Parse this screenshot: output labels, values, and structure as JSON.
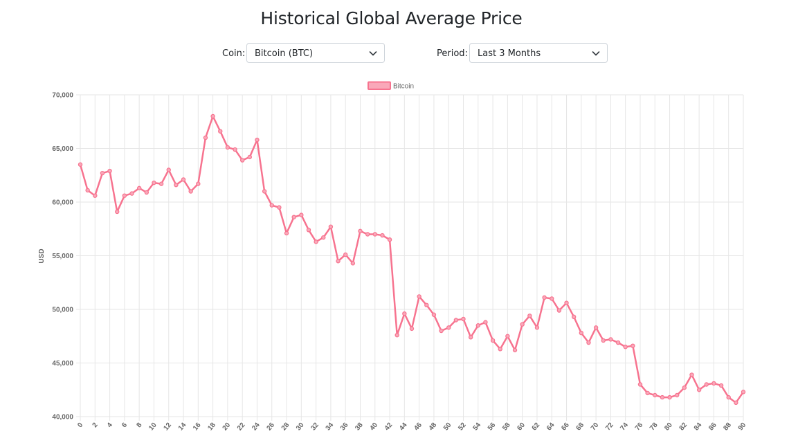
{
  "header": {
    "title": "Historical Global Average Price"
  },
  "controls": {
    "coin_label": "Coin:",
    "coin_value": "Bitcoin (BTC)",
    "period_label": "Period:",
    "period_value": "Last 3 Months"
  },
  "colors": {
    "line": "#f7738f",
    "fill": "#f9a8b9",
    "grid": "#e6e6e6",
    "tick_text": "#666666"
  },
  "icons": {
    "dropdown": "chevron-down-icon"
  },
  "chart_data": {
    "type": "line",
    "title": "",
    "xlabel": "",
    "ylabel": "USD",
    "ylim": [
      40000,
      70000
    ],
    "xlim": [
      0,
      90
    ],
    "y_tick_step": 5000,
    "x_tick_step": 2,
    "grid": true,
    "legend_position": "top",
    "x": [
      0,
      1,
      2,
      3,
      4,
      5,
      6,
      7,
      8,
      9,
      10,
      11,
      12,
      13,
      14,
      15,
      16,
      17,
      18,
      19,
      20,
      21,
      22,
      23,
      24,
      25,
      26,
      27,
      28,
      29,
      30,
      31,
      32,
      33,
      34,
      35,
      36,
      37,
      38,
      39,
      40,
      41,
      42,
      43,
      44,
      45,
      46,
      47,
      48,
      49,
      50,
      51,
      52,
      53,
      54,
      55,
      56,
      57,
      58,
      59,
      60,
      61,
      62,
      63,
      64,
      65,
      66,
      67,
      68,
      69,
      70,
      71,
      72,
      73,
      74,
      75,
      76,
      77,
      78,
      79,
      80,
      81,
      82,
      83,
      84,
      85,
      86,
      87,
      88,
      89,
      90
    ],
    "series": [
      {
        "name": "Bitcoin",
        "values": [
          63500,
          61100,
          60600,
          62700,
          62900,
          59100,
          60600,
          60800,
          61300,
          60900,
          61800,
          61700,
          63000,
          61600,
          62100,
          61000,
          61700,
          66000,
          68000,
          66600,
          65100,
          64900,
          63900,
          64200,
          65800,
          61000,
          59700,
          59500,
          57100,
          58600,
          58800,
          57400,
          56300,
          56700,
          57700,
          54500,
          55100,
          54300,
          57300,
          57000,
          57000,
          56900,
          56500,
          47600,
          49600,
          48200,
          51200,
          50400,
          49500,
          48000,
          48300,
          49000,
          49100,
          47400,
          48500,
          48800,
          47100,
          46300,
          47500,
          46200,
          48600,
          49400,
          48300,
          51100,
          51000,
          49900,
          50600,
          49300,
          47800,
          46900,
          48300,
          47100,
          47200,
          46900,
          46500,
          46600,
          43000,
          42200,
          42000,
          41800,
          41800,
          42000,
          42700,
          43900,
          42500,
          43000,
          43100,
          42900,
          41800,
          41300,
          42300
        ]
      }
    ]
  }
}
